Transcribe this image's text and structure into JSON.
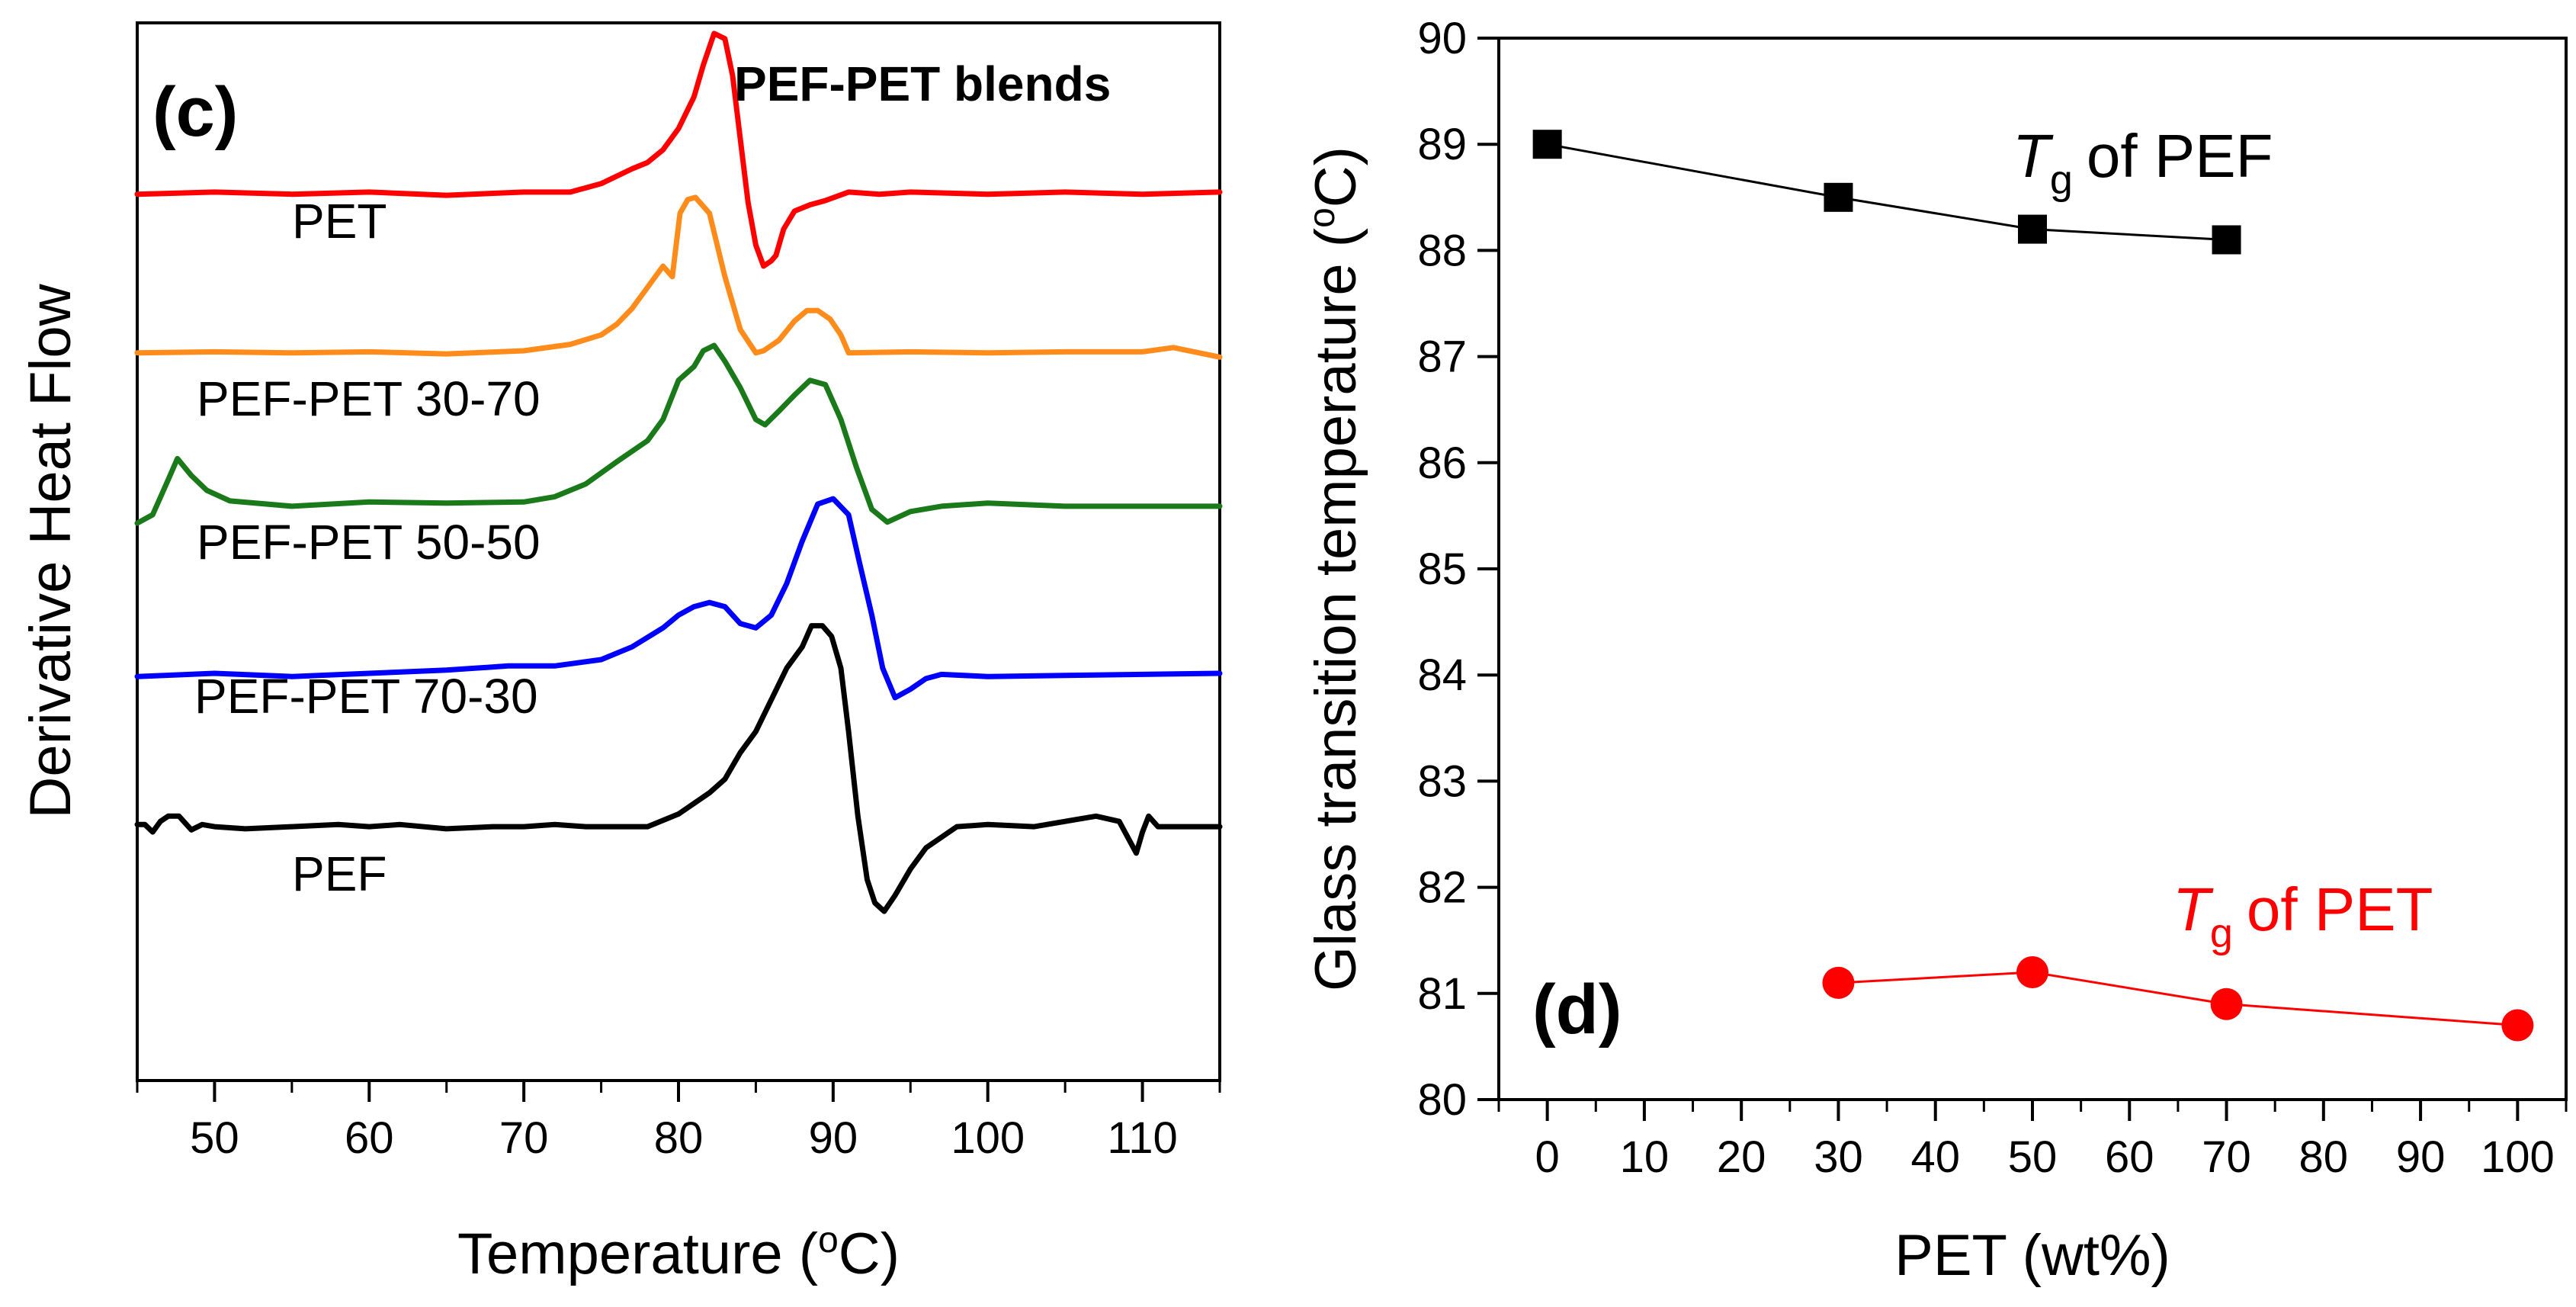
{
  "chart_data": [
    {
      "type": "line",
      "panel_label": "(c)",
      "title": "PEF-PET blends",
      "xlabel": "Temperature",
      "xlabel_unit_base": "o",
      "xlabel_unit_suffix": "C",
      "xlabel_open": "(",
      "xlabel_close": ")",
      "ylabel": "Derivative Heat Flow",
      "xlim": [
        45,
        115
      ],
      "x_ticks": [
        50,
        60,
        70,
        80,
        90,
        100,
        110
      ],
      "y_ticks_shown": false,
      "series": [
        {
          "name": "PET",
          "color": "#ff0000",
          "baseline": 0.838,
          "x": [
            45,
            50,
            55,
            60,
            65,
            70,
            73,
            75,
            77,
            78,
            79,
            80,
            81,
            81.6,
            82.3,
            83,
            83.5,
            84,
            84.5,
            85,
            85.5,
            86,
            86.3,
            86.8,
            87.5,
            88.5,
            89.5,
            91,
            93,
            95,
            100,
            105,
            110,
            115
          ],
          "y": [
            0.838,
            0.84,
            0.838,
            0.84,
            0.837,
            0.84,
            0.84,
            0.848,
            0.862,
            0.868,
            0.88,
            0.9,
            0.93,
            0.96,
            0.99,
            0.985,
            0.95,
            0.89,
            0.83,
            0.79,
            0.77,
            0.775,
            0.78,
            0.805,
            0.822,
            0.828,
            0.832,
            0.84,
            0.838,
            0.84,
            0.838,
            0.84,
            0.838,
            0.84
          ]
        },
        {
          "name": "PEF-PET 30-70",
          "color": "#ff8c1a",
          "baseline": 0.688,
          "x": [
            45,
            50,
            55,
            60,
            65,
            70,
            73,
            75,
            76,
            77,
            78,
            79,
            79.6,
            80.1,
            80.6,
            81.1,
            82,
            83,
            84,
            85,
            85.5,
            86.5,
            87.5,
            88.3,
            89,
            89.8,
            90.5,
            91,
            95,
            100,
            105,
            110,
            112,
            115
          ],
          "y": [
            0.688,
            0.689,
            0.688,
            0.689,
            0.687,
            0.69,
            0.696,
            0.705,
            0.715,
            0.73,
            0.75,
            0.77,
            0.76,
            0.82,
            0.833,
            0.835,
            0.82,
            0.76,
            0.71,
            0.688,
            0.69,
            0.7,
            0.718,
            0.728,
            0.728,
            0.72,
            0.705,
            0.688,
            0.689,
            0.688,
            0.689,
            0.689,
            0.693,
            0.684
          ]
        },
        {
          "name": "PEF-PET 50-50",
          "color": "#1a7a1a",
          "baseline": 0.543,
          "x": [
            45,
            46,
            47,
            47.6,
            48.5,
            49.5,
            51,
            55,
            60,
            65,
            70,
            72,
            74,
            76,
            78,
            79,
            80,
            81,
            81.6,
            82.3,
            83,
            84,
            85,
            85.6,
            86.5,
            87.5,
            88.5,
            89.5,
            90.5,
            91.5,
            92.5,
            93.5,
            95,
            97,
            100,
            105,
            110,
            115
          ],
          "y": [
            0.527,
            0.535,
            0.568,
            0.588,
            0.572,
            0.558,
            0.548,
            0.543,
            0.547,
            0.546,
            0.547,
            0.552,
            0.564,
            0.585,
            0.605,
            0.625,
            0.662,
            0.675,
            0.69,
            0.695,
            0.68,
            0.655,
            0.625,
            0.62,
            0.633,
            0.648,
            0.662,
            0.658,
            0.625,
            0.58,
            0.54,
            0.528,
            0.538,
            0.543,
            0.546,
            0.543,
            0.543,
            0.543
          ]
        },
        {
          "name": "PEF-PET 70-30",
          "color": "#0000ff",
          "baseline": 0.382,
          "x": [
            45,
            50,
            55,
            60,
            65,
            69,
            72,
            75,
            77,
            79,
            80,
            81,
            82,
            83,
            84,
            85,
            86,
            87,
            88,
            89,
            90,
            91,
            91.7,
            92.5,
            93.2,
            94,
            95,
            96,
            97,
            100,
            105,
            110,
            115
          ],
          "y": [
            0.382,
            0.385,
            0.382,
            0.385,
            0.388,
            0.392,
            0.392,
            0.398,
            0.41,
            0.428,
            0.44,
            0.448,
            0.452,
            0.448,
            0.432,
            0.428,
            0.44,
            0.47,
            0.51,
            0.545,
            0.55,
            0.535,
            0.49,
            0.44,
            0.39,
            0.362,
            0.37,
            0.38,
            0.384,
            0.382,
            0.383,
            0.384,
            0.385
          ]
        },
        {
          "name": "PEF",
          "color": "#000000",
          "baseline": 0.24,
          "x": [
            45,
            45.5,
            46,
            46.5,
            47,
            47.7,
            48.5,
            49.2,
            50,
            52,
            55,
            58,
            60,
            62,
            65,
            68,
            70,
            72,
            74,
            76,
            78,
            80,
            82,
            83,
            84,
            85,
            86,
            87,
            88,
            88.6,
            89.3,
            89.9,
            90.5,
            91,
            91.6,
            92.2,
            92.7,
            93.3,
            94,
            95,
            96,
            98,
            100,
            103,
            105,
            107,
            108.5,
            109.6,
            110,
            110.4,
            111,
            112,
            115
          ],
          "y": [
            0.242,
            0.242,
            0.235,
            0.245,
            0.25,
            0.25,
            0.237,
            0.242,
            0.24,
            0.238,
            0.24,
            0.242,
            0.24,
            0.242,
            0.238,
            0.24,
            0.24,
            0.242,
            0.24,
            0.24,
            0.24,
            0.252,
            0.272,
            0.285,
            0.31,
            0.33,
            0.36,
            0.39,
            0.41,
            0.43,
            0.43,
            0.42,
            0.39,
            0.33,
            0.25,
            0.19,
            0.168,
            0.16,
            0.175,
            0.2,
            0.22,
            0.24,
            0.242,
            0.24,
            0.245,
            0.25,
            0.245,
            0.215,
            0.235,
            0.25,
            0.24,
            0.24,
            0.24
          ]
        }
      ]
    },
    {
      "type": "line",
      "panel_label": "(d)",
      "xlabel": "PET (wt%)",
      "ylabel": "Glass transition temperature",
      "ylabel_open": "(",
      "ylabel_unit_base": "o",
      "ylabel_unit_suffix": "C",
      "ylabel_close": ")",
      "xlim": [
        -5,
        105
      ],
      "ylim": [
        80,
        90
      ],
      "x_ticks": [
        0,
        10,
        20,
        30,
        40,
        50,
        60,
        70,
        80,
        90,
        100
      ],
      "y_ticks": [
        80,
        81,
        82,
        83,
        84,
        85,
        86,
        87,
        88,
        89,
        90
      ],
      "series": [
        {
          "name": "Tg of PEF",
          "legend_symbol": "T",
          "legend_subscript": "g",
          "legend_rest": "of PEF",
          "marker": "square",
          "color": "#000000",
          "x": [
            0,
            30,
            50,
            70
          ],
          "y": [
            89.0,
            88.5,
            88.2,
            88.1
          ]
        },
        {
          "name": "Tg of PET",
          "legend_symbol": "T",
          "legend_subscript": "g",
          "legend_rest": "of PET",
          "marker": "circle",
          "color": "#ff0000",
          "x": [
            30,
            50,
            70,
            100
          ],
          "y": [
            81.1,
            81.2,
            80.9,
            80.7
          ]
        }
      ]
    }
  ]
}
